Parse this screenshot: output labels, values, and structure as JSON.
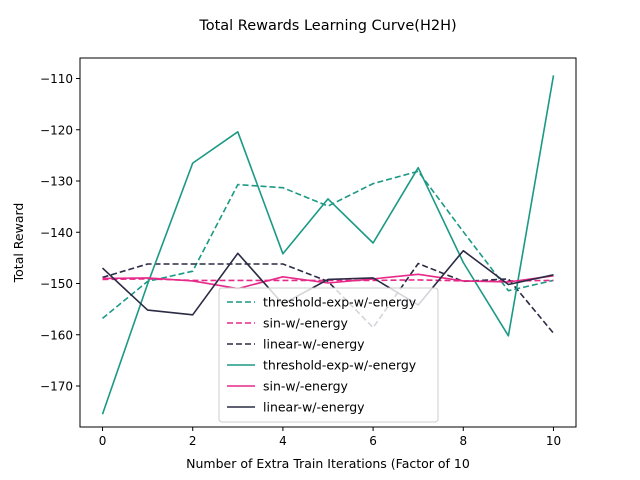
{
  "chart_data": {
    "type": "line",
    "title": "Total Rewards Learning Curve(H2H)",
    "xlabel": "Number of Extra Train Iterations (Factor of 10",
    "ylabel": "Total Reward",
    "xlim": [
      -0.5,
      10.5
    ],
    "ylim": [
      -178,
      -106
    ],
    "xticks": [
      0,
      2,
      4,
      6,
      8,
      10
    ],
    "yticks": [
      -170,
      -160,
      -150,
      -140,
      -130,
      -120,
      -110
    ],
    "grid": false,
    "legend_position": "lower-center",
    "x": [
      0,
      1,
      2,
      3,
      4,
      5,
      6,
      7,
      8,
      9,
      10
    ],
    "series": [
      {
        "name": "threshold-exp-w/-energy",
        "dash": "dashed",
        "color": "#1b9985",
        "values": [
          -156.8,
          -149.6,
          -147.6,
          -130.7,
          -131.3,
          -134.9,
          -130.5,
          -128.1,
          -139.9,
          -151.4,
          -149.4
        ]
      },
      {
        "name": "sin-w/-energy",
        "dash": "dashed",
        "color": "#e7298a",
        "values": [
          -149.2,
          -149.1,
          -149.4,
          -149.4,
          -149.4,
          -149.4,
          -149.4,
          -149.3,
          -149.5,
          -149.5,
          -149.4
        ]
      },
      {
        "name": "linear-w/-energy",
        "dash": "dashed",
        "color": "#2b2b45",
        "values": [
          -148.8,
          -146.2,
          -146.2,
          -146.2,
          -146.2,
          -149.6,
          -158.6,
          -146.1,
          -149.6,
          -149.1,
          -159.7
        ]
      },
      {
        "name": "threshold-exp-w/-energy",
        "dash": "solid",
        "color": "#1b9985",
        "values": [
          -175.5,
          -150.1,
          -126.5,
          -120.4,
          -144.2,
          -133.5,
          -142.1,
          -127.4,
          -145.9,
          -160.2,
          -109.4
        ]
      },
      {
        "name": "sin-w/-energy",
        "dash": "solid",
        "color": "#e7298a",
        "values": [
          -149.0,
          -148.9,
          -149.5,
          -151.0,
          -148.7,
          -149.9,
          -149.1,
          -148.2,
          -149.5,
          -149.7,
          -148.5
        ]
      },
      {
        "name": "linear-w/-energy",
        "dash": "solid",
        "color": "#2b2b45",
        "values": [
          -147.0,
          -155.2,
          -156.1,
          -144.1,
          -154.0,
          -149.2,
          -148.9,
          -154.2,
          -143.6,
          -150.2,
          -148.3
        ]
      }
    ]
  }
}
